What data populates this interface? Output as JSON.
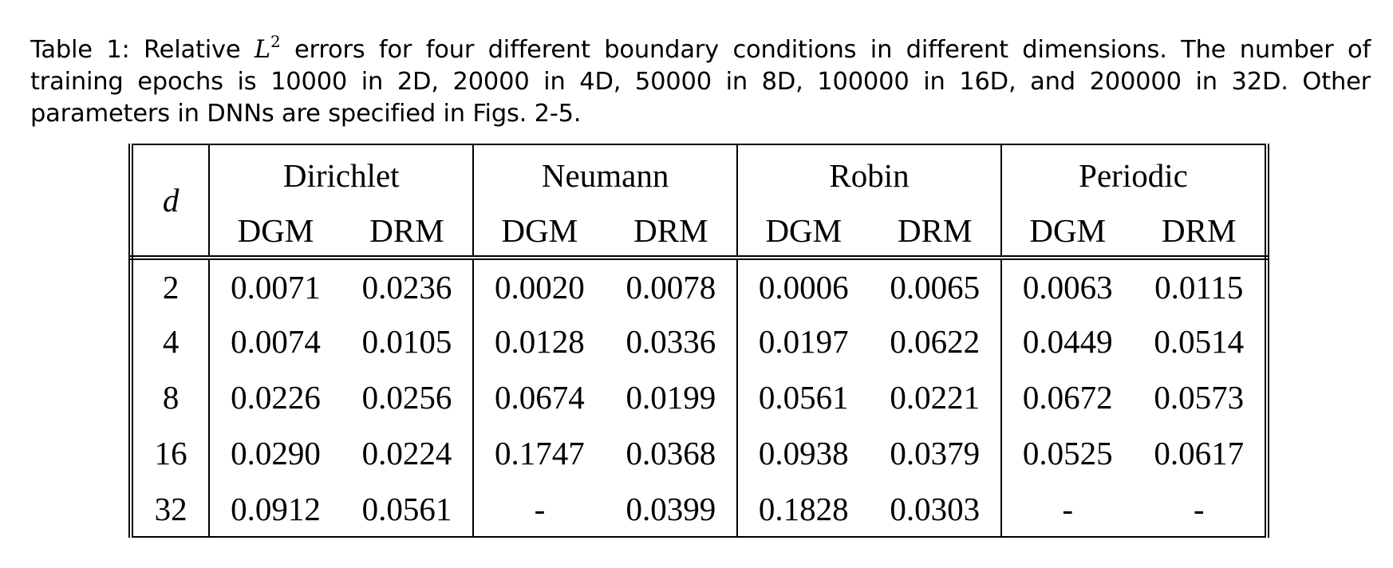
{
  "caption": {
    "prefix": "Table 1: Relative ",
    "math_symbol": "L",
    "math_exponent": "2",
    "text": " errors for four different boundary conditions in different dimensions. The number of training epochs is 10000 in 2D, 20000 in 4D, 50000 in 8D, 100000 in 16D, and 200000 in 32D. Other parameters in DNNs are specified in Figs. 2-5."
  },
  "table": {
    "dimension_header": "d",
    "groups": [
      "Dirichlet",
      "Neumann",
      "Robin",
      "Periodic"
    ],
    "subheaders": [
      "DGM",
      "DRM",
      "DGM",
      "DRM",
      "DGM",
      "DRM",
      "DGM",
      "DRM"
    ],
    "rows": [
      {
        "d": "2",
        "values": [
          "0.0071",
          "0.0236",
          "0.0020",
          "0.0078",
          "0.0006",
          "0.0065",
          "0.0063",
          "0.0115"
        ]
      },
      {
        "d": "4",
        "values": [
          "0.0074",
          "0.0105",
          "0.0128",
          "0.0336",
          "0.0197",
          "0.0622",
          "0.0449",
          "0.0514"
        ]
      },
      {
        "d": "8",
        "values": [
          "0.0226",
          "0.0256",
          "0.0674",
          "0.0199",
          "0.0561",
          "0.0221",
          "0.0672",
          "0.0573"
        ]
      },
      {
        "d": "16",
        "values": [
          "0.0290",
          "0.0224",
          "0.1747",
          "0.0368",
          "0.0938",
          "0.0379",
          "0.0525",
          "0.0617"
        ]
      },
      {
        "d": "32",
        "values": [
          "0.0912",
          "0.0561",
          "-",
          "0.0399",
          "0.1828",
          "0.0303",
          "-",
          "-"
        ]
      }
    ]
  }
}
